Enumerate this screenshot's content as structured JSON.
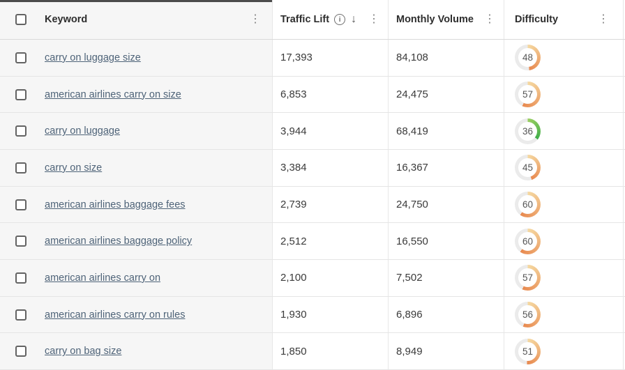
{
  "table": {
    "header": {
      "keyword_label": "Keyword",
      "traffic_lift_label": "Traffic Lift",
      "monthly_volume_label": "Monthly Volume",
      "difficulty_label": "Difficulty",
      "kebab_glyph": "⋮",
      "info_glyph": "i",
      "sort_desc_glyph": "↓"
    },
    "rows": [
      {
        "keyword": "carry on luggage size",
        "traffic_lift": "17,393",
        "monthly_volume": "84,108",
        "difficulty": 48,
        "difficulty_color": "orange"
      },
      {
        "keyword": "american airlines carry on size",
        "traffic_lift": "6,853",
        "monthly_volume": "24,475",
        "difficulty": 57,
        "difficulty_color": "orange"
      },
      {
        "keyword": "carry on luggage",
        "traffic_lift": "3,944",
        "monthly_volume": "68,419",
        "difficulty": 36,
        "difficulty_color": "green"
      },
      {
        "keyword": "carry on size",
        "traffic_lift": "3,384",
        "monthly_volume": "16,367",
        "difficulty": 45,
        "difficulty_color": "orange"
      },
      {
        "keyword": "american airlines baggage fees",
        "traffic_lift": "2,739",
        "monthly_volume": "24,750",
        "difficulty": 60,
        "difficulty_color": "orange"
      },
      {
        "keyword": "american airlines baggage policy",
        "traffic_lift": "2,512",
        "monthly_volume": "16,550",
        "difficulty": 60,
        "difficulty_color": "orange"
      },
      {
        "keyword": "american airlines carry on",
        "traffic_lift": "2,100",
        "monthly_volume": "7,502",
        "difficulty": 57,
        "difficulty_color": "orange"
      },
      {
        "keyword": "american airlines carry on rules",
        "traffic_lift": "1,930",
        "monthly_volume": "6,896",
        "difficulty": 56,
        "difficulty_color": "orange"
      },
      {
        "keyword": "carry on bag size",
        "traffic_lift": "1,850",
        "monthly_volume": "8,949",
        "difficulty": 51,
        "difficulty_color": "orange"
      }
    ]
  },
  "colors": {
    "pinned_column_bg": "#f6f6f6",
    "top_accent_bar": "#4c4c4c",
    "link": "#4e6378",
    "difficulty_track": "#ebebeb",
    "difficulty_palette": {
      "orange": {
        "start": "#f5d9a2",
        "end": "#e8894f"
      },
      "green": {
        "start": "#9ccf62",
        "end": "#3fae4a"
      }
    }
  }
}
